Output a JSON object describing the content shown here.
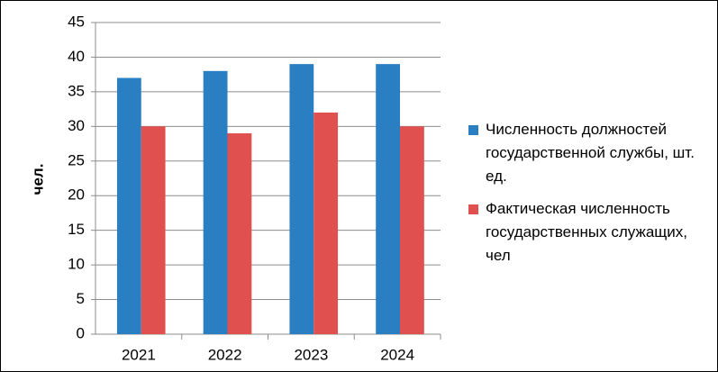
{
  "chart_data": {
    "type": "bar",
    "y_label": "чел.",
    "categories": [
      "2021",
      "2022",
      "2023",
      "2024"
    ],
    "series": [
      {
        "name": "Численность должностей государственной службы, шт. ед.",
        "color": "#2a7fc3",
        "values": [
          37,
          38,
          39,
          39
        ]
      },
      {
        "name": "Фактическая численность государственных служащих, чел",
        "color": "#e0504f",
        "values": [
          30,
          29,
          32,
          30
        ]
      }
    ],
    "ylim": [
      0,
      45
    ],
    "yticks": [
      0,
      5,
      10,
      15,
      20,
      25,
      30,
      35,
      40,
      45
    ],
    "grid": true,
    "legend": "right"
  }
}
